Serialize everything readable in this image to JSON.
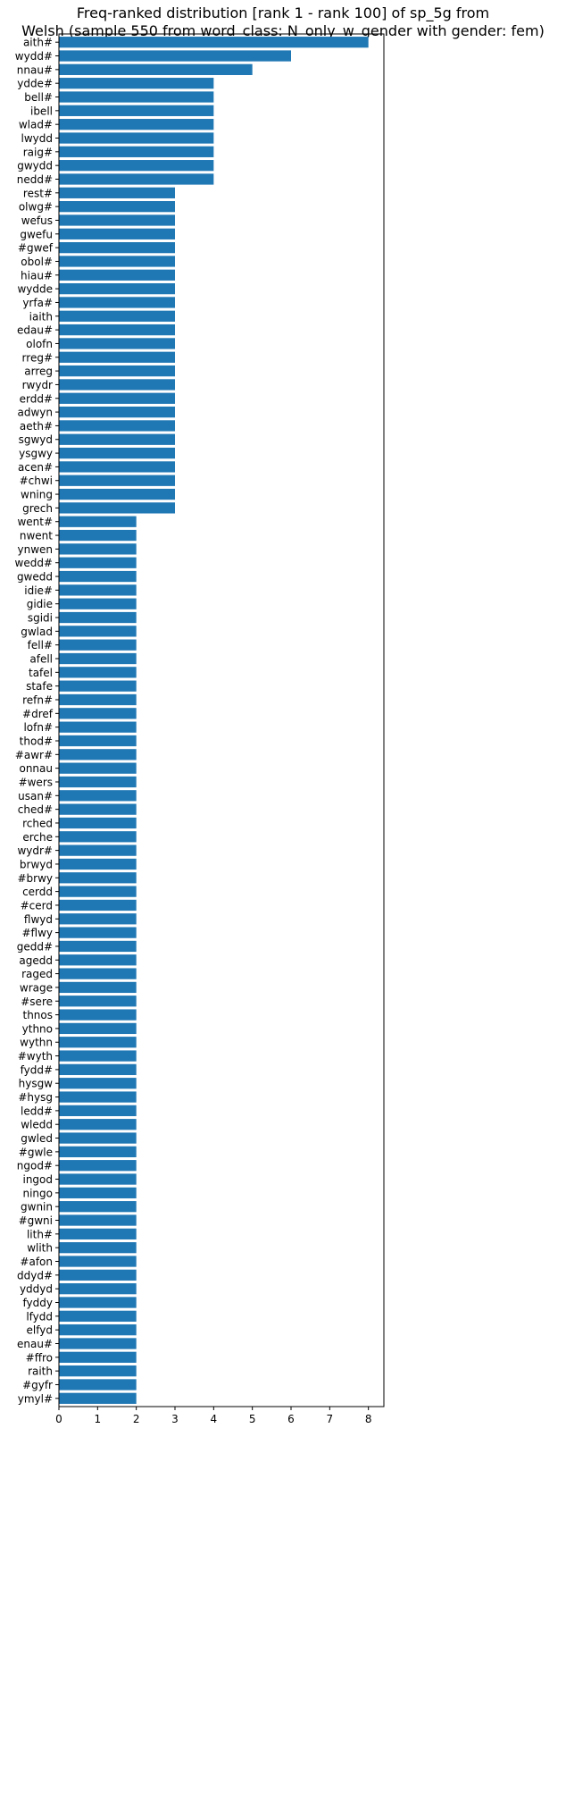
{
  "chart_data": {
    "type": "bar",
    "orientation": "horizontal",
    "title_lines": [
      "Freq-ranked distribution [rank 1 - rank 100] of sp_5g from",
      "Welsh (sample 550 from word_class: N_only_w_gender with gender: fem)"
    ],
    "xlabel": "",
    "ylabel": "",
    "xlim": [
      0,
      8.4
    ],
    "xticks": [
      0,
      1,
      2,
      3,
      4,
      5,
      6,
      7,
      8
    ],
    "grid": false,
    "bar_color": "#1f77b4",
    "categories": [
      "aith#",
      "wydd#",
      "nnau#",
      "ydde#",
      "bell#",
      "ibell",
      "wlad#",
      "lwydd",
      "raig#",
      "gwydd",
      "nedd#",
      "rest#",
      "olwg#",
      "wefus",
      "gwefu",
      "#gwef",
      "obol#",
      "hiau#",
      "wydde",
      "yrfa#",
      "iaith",
      "edau#",
      "olofn",
      "rreg#",
      "arreg",
      "rwydr",
      "erdd#",
      "adwyn",
      "aeth#",
      "sgwyd",
      "ysgwy",
      "acen#",
      "#chwi",
      "wning",
      "grech",
      "went#",
      "nwent",
      "ynwen",
      "wedd#",
      "gwedd",
      "idie#",
      "gidie",
      "sgidi",
      "gwlad",
      "fell#",
      "afell",
      "tafel",
      "stafe",
      "refn#",
      "#dref",
      "lofn#",
      "thod#",
      "#awr#",
      "onnau",
      "#wers",
      "usan#",
      "ched#",
      "rched",
      "erche",
      "wydr#",
      "brwyd",
      "#brwy",
      "cerdd",
      "#cerd",
      "flwyd",
      "#flwy",
      "gedd#",
      "agedd",
      "raged",
      "wrage",
      "#sere",
      "thnos",
      "ythno",
      "wythn",
      "#wyth",
      "fydd#",
      "hysgw",
      "#hysg",
      "ledd#",
      "wledd",
      "gwled",
      "#gwle",
      "ngod#",
      "ingod",
      "ningo",
      "gwnin",
      "#gwni",
      "lith#",
      "wlith",
      "#afon",
      "ddyd#",
      "yddyd",
      "fyddy",
      "lfydd",
      "elfyd",
      "enau#",
      "#ffro",
      "raith",
      "#gyfr",
      "ymyl#"
    ],
    "values": [
      8,
      6,
      5,
      4,
      4,
      4,
      4,
      4,
      4,
      4,
      4,
      3,
      3,
      3,
      3,
      3,
      3,
      3,
      3,
      3,
      3,
      3,
      3,
      3,
      3,
      3,
      3,
      3,
      3,
      3,
      3,
      3,
      3,
      3,
      3,
      2,
      2,
      2,
      2,
      2,
      2,
      2,
      2,
      2,
      2,
      2,
      2,
      2,
      2,
      2,
      2,
      2,
      2,
      2,
      2,
      2,
      2,
      2,
      2,
      2,
      2,
      2,
      2,
      2,
      2,
      2,
      2,
      2,
      2,
      2,
      2,
      2,
      2,
      2,
      2,
      2,
      2,
      2,
      2,
      2,
      2,
      2,
      2,
      2,
      2,
      2,
      2,
      2,
      2,
      2,
      2,
      2,
      2,
      2,
      2,
      2,
      2,
      2,
      2,
      2
    ]
  }
}
